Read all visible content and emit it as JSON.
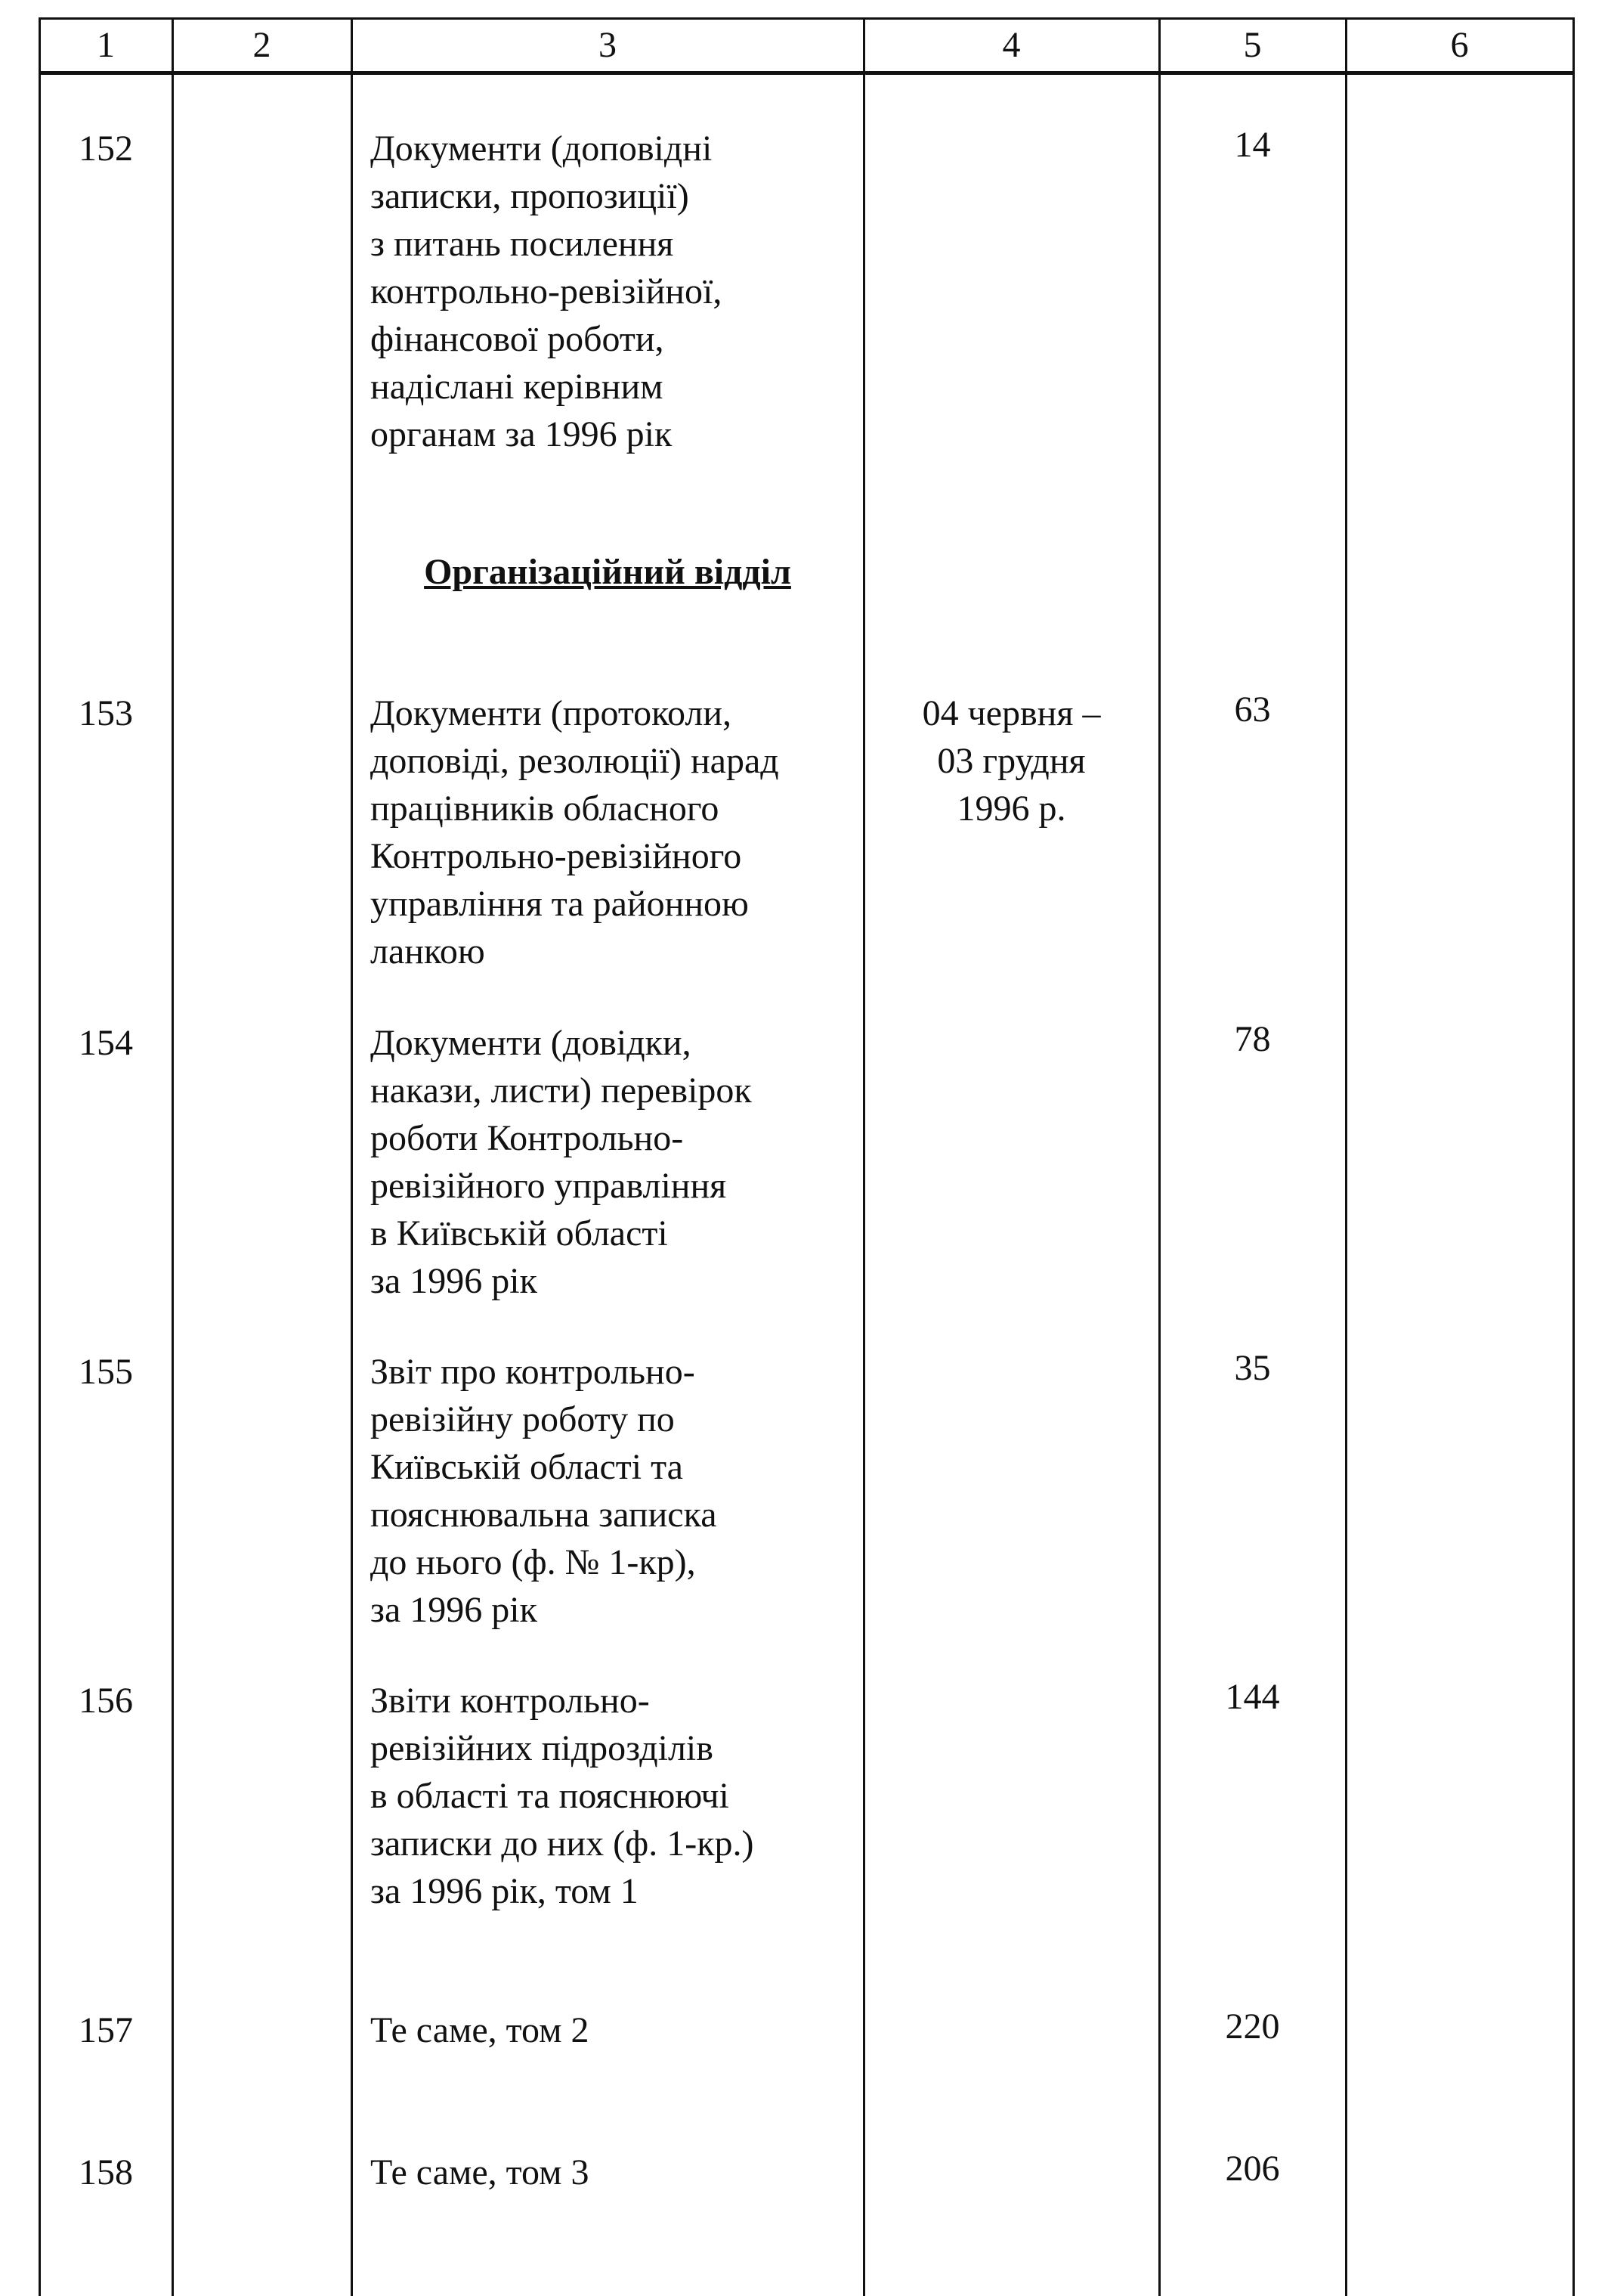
{
  "header": [
    "1",
    "2",
    "3",
    "4",
    "5",
    "6"
  ],
  "section_heading": "Організаційний відділ",
  "rows": [
    {
      "num": "152",
      "title": [
        "Документи (доповідні",
        "записки, пропозиції)",
        "з питань посилення",
        "контрольно-ревізійної,",
        "фінансової роботи,",
        "надіслані керівним",
        "органам за 1996 рік"
      ],
      "dates": [],
      "sheets": "14"
    },
    {
      "num": "153",
      "title": [
        "Документи (протоколи,",
        "доповіді, резолюції) нарад",
        "працівників обласного",
        "Контрольно-ревізійного",
        "управління та районною",
        "ланкою"
      ],
      "dates": [
        "04 червня –",
        "03 грудня",
        "1996 р."
      ],
      "sheets": "63"
    },
    {
      "num": "154",
      "title": [
        "Документи (довідки,",
        "накази, листи) перевірок",
        "роботи Контрольно-",
        "ревізійного управління",
        "в Київській області",
        "за 1996 рік"
      ],
      "dates": [],
      "sheets": "78"
    },
    {
      "num": "155",
      "title": [
        "Звіт про контрольно-",
        "ревізійну роботу по",
        "Київській області та",
        "пояснювальна записка",
        "до нього (ф. № 1-кр),",
        "за 1996 рік"
      ],
      "dates": [],
      "sheets": "35"
    },
    {
      "num": "156",
      "title": [
        "Звіти контрольно-",
        "ревізійних підрозділів",
        "в області та пояснюючі",
        "записки до них (ф. 1-кр.)",
        "за 1996 рік, том 1"
      ],
      "dates": [],
      "sheets": "144"
    },
    {
      "num": "157",
      "title": [
        "Те саме, том 2"
      ],
      "dates": [],
      "sheets": "220"
    },
    {
      "num": "158",
      "title": [
        "Те саме, том 3"
      ],
      "dates": [],
      "sheets": "206"
    }
  ]
}
